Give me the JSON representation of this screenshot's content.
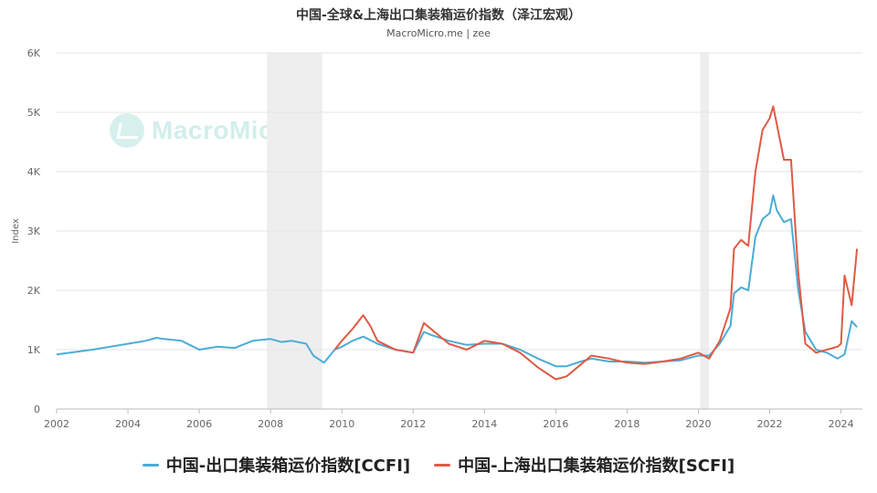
{
  "header": {
    "title": "中国-全球&上海出口集装箱运价指数（泽江宏观）",
    "subtitle": "MacroMicro.me | zee"
  },
  "watermark": "MacroMicro",
  "chart_data": {
    "type": "line",
    "ylabel": "Index",
    "ylim": [
      0,
      6000
    ],
    "yticks": [
      "0",
      "1K",
      "2K",
      "3K",
      "4K",
      "5K",
      "6K"
    ],
    "yticks_values": [
      0,
      1000,
      2000,
      3000,
      4000,
      5000,
      6000
    ],
    "xlim": [
      2002,
      2024.6
    ],
    "xticks": [
      "2002",
      "2004",
      "2006",
      "2008",
      "2010",
      "2012",
      "2014",
      "2016",
      "2018",
      "2020",
      "2022",
      "2024"
    ],
    "xticks_values": [
      2002,
      2004,
      2006,
      2008,
      2010,
      2012,
      2014,
      2016,
      2018,
      2020,
      2022,
      2024
    ],
    "grid": "horizontal",
    "legend_position": "bottom",
    "shaded_periods": [
      [
        2007.9,
        2009.45
      ],
      [
        2020.05,
        2020.3
      ]
    ],
    "series": [
      {
        "name": "中国-出口集装箱运价指数[CCFI]",
        "color": "#4bacd6",
        "x": [
          2002.0,
          2002.5,
          2003.0,
          2003.5,
          2004.0,
          2004.5,
          2004.8,
          2005.0,
          2005.5,
          2006.0,
          2006.5,
          2007.0,
          2007.5,
          2008.0,
          2008.3,
          2008.6,
          2009.0,
          2009.2,
          2009.5,
          2009.8,
          2010.0,
          2010.3,
          2010.6,
          2011.0,
          2011.5,
          2012.0,
          2012.3,
          2012.5,
          2013.0,
          2013.5,
          2014.0,
          2014.5,
          2015.0,
          2015.5,
          2016.0,
          2016.3,
          2016.7,
          2017.0,
          2017.5,
          2018.0,
          2018.5,
          2019.0,
          2019.5,
          2020.0,
          2020.3,
          2020.6,
          2020.9,
          2021.0,
          2021.2,
          2021.4,
          2021.6,
          2021.8,
          2022.0,
          2022.1,
          2022.2,
          2022.4,
          2022.6,
          2022.8,
          2023.0,
          2023.3,
          2023.6,
          2023.9,
          2024.1,
          2024.3,
          2024.45
        ],
        "values": [
          920,
          960,
          1000,
          1050,
          1100,
          1150,
          1200,
          1180,
          1150,
          1000,
          1050,
          1030,
          1150,
          1180,
          1130,
          1150,
          1100,
          900,
          780,
          1000,
          1050,
          1150,
          1220,
          1100,
          1000,
          950,
          1300,
          1250,
          1150,
          1080,
          1100,
          1100,
          1000,
          850,
          720,
          720,
          800,
          850,
          800,
          800,
          780,
          800,
          820,
          900,
          900,
          1100,
          1400,
          1950,
          2050,
          2000,
          2900,
          3200,
          3300,
          3600,
          3350,
          3150,
          3200,
          2000,
          1300,
          1000,
          950,
          850,
          920,
          1480,
          1380
        ]
      },
      {
        "name": "中国-上海出口集装箱运价指数[SCFI]",
        "color": "#e05a44",
        "x": [
          2009.8,
          2010.0,
          2010.3,
          2010.6,
          2010.8,
          2011.0,
          2011.5,
          2012.0,
          2012.3,
          2012.5,
          2013.0,
          2013.5,
          2014.0,
          2014.5,
          2015.0,
          2015.5,
          2016.0,
          2016.3,
          2016.7,
          2017.0,
          2017.5,
          2018.0,
          2018.5,
          2019.0,
          2019.5,
          2020.0,
          2020.3,
          2020.6,
          2020.9,
          2021.0,
          2021.2,
          2021.4,
          2021.6,
          2021.8,
          2022.0,
          2022.1,
          2022.2,
          2022.4,
          2022.6,
          2022.8,
          2023.0,
          2023.3,
          2023.6,
          2023.9,
          2024.0,
          2024.1,
          2024.3,
          2024.45
        ],
        "values": [
          1000,
          1150,
          1350,
          1580,
          1400,
          1150,
          1000,
          950,
          1450,
          1350,
          1100,
          1000,
          1150,
          1100,
          950,
          700,
          500,
          550,
          750,
          900,
          850,
          780,
          760,
          800,
          850,
          950,
          850,
          1150,
          1700,
          2700,
          2850,
          2750,
          4000,
          4700,
          4900,
          5100,
          4800,
          4200,
          4200,
          2300,
          1100,
          950,
          1000,
          1050,
          1100,
          2250,
          1750,
          2700
        ]
      }
    ]
  }
}
